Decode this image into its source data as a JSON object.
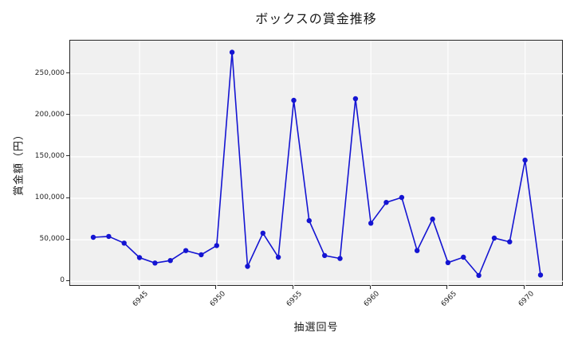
{
  "chart_data": {
    "type": "line",
    "title": "ボックスの賞金推移",
    "xlabel": "抽選回号",
    "ylabel": "賞金額（円）",
    "x": [
      6942,
      6943,
      6944,
      6945,
      6946,
      6947,
      6948,
      6949,
      6950,
      6951,
      6952,
      6953,
      6954,
      6955,
      6956,
      6957,
      6958,
      6959,
      6960,
      6961,
      6962,
      6963,
      6964,
      6965,
      6966,
      6967,
      6968,
      6969,
      6970,
      6971
    ],
    "values": [
      53000,
      54000,
      46000,
      28500,
      22000,
      25000,
      37000,
      32000,
      43000,
      276000,
      18000,
      58000,
      29000,
      218000,
      73000,
      31000,
      27500,
      220000,
      70000,
      95000,
      101000,
      37000,
      75000,
      22500,
      29000,
      7000,
      52000,
      47500,
      146000,
      7500
    ],
    "xlim": [
      6940.5,
      6972.5
    ],
    "ylim": [
      -6500,
      290000
    ],
    "x_ticks": [
      6945,
      6950,
      6955,
      6960,
      6965,
      6970
    ],
    "x_tick_labels": [
      "6945",
      "6950",
      "6955",
      "6960",
      "6965",
      "6970"
    ],
    "y_ticks": [
      0,
      50000,
      100000,
      150000,
      200000,
      250000
    ],
    "y_tick_labels": [
      "0",
      "50,000",
      "100,000",
      "150,000",
      "200,000",
      "250,000"
    ],
    "grid": true,
    "legend": "none",
    "colors": {
      "line": "#1414d2",
      "marker": "#1414d2",
      "plot_background": "#f0f0f0",
      "grid_line": "#ffffff",
      "spine": "#262626",
      "text": "#1a1a1a"
    }
  }
}
